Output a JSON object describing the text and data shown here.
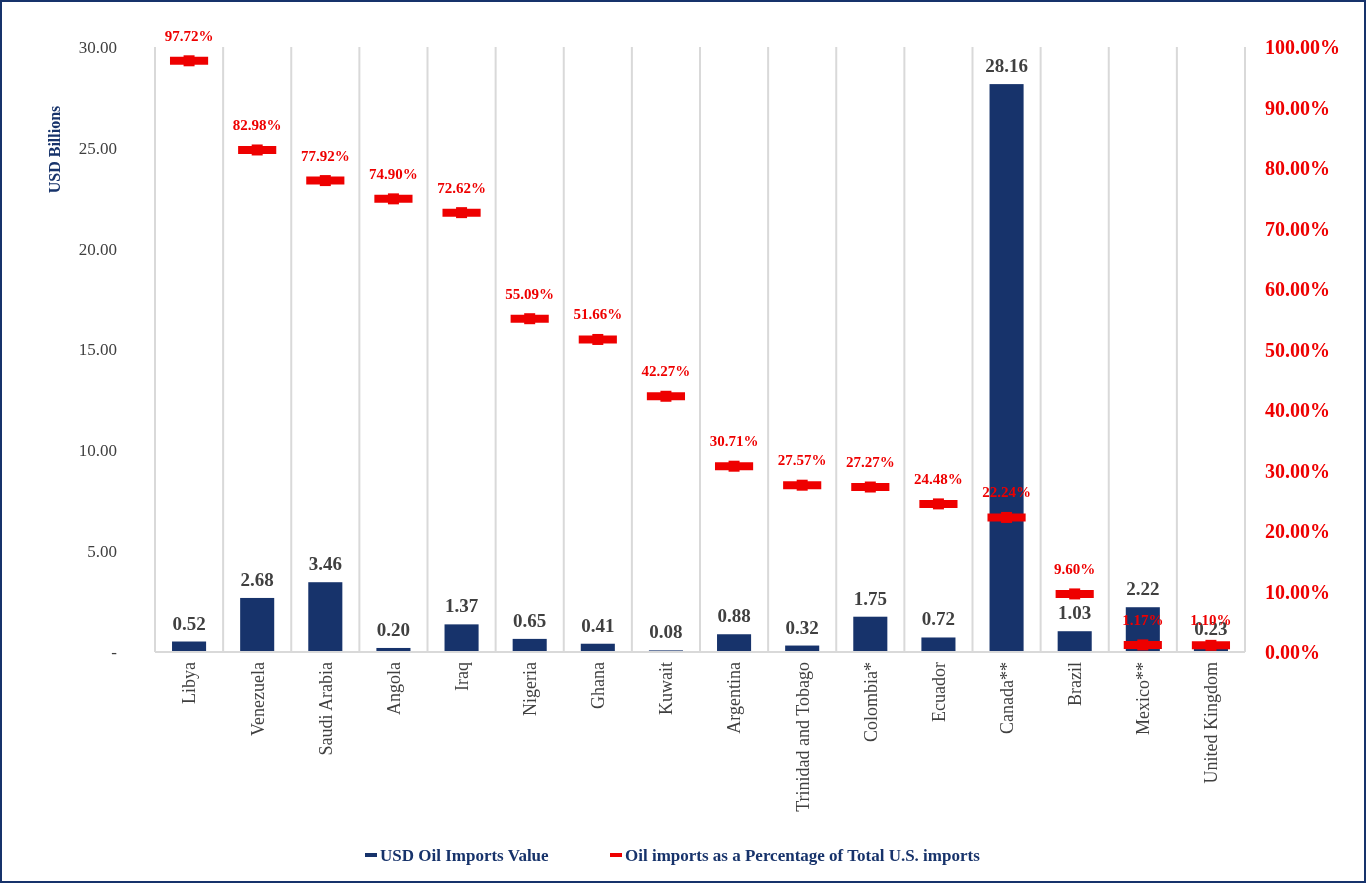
{
  "chart_data": {
    "type": "bar",
    "ylabel": "USD Billions",
    "categories": [
      "Libya",
      "Venezuela",
      "Saudi Arabia",
      "Angola",
      "Iraq",
      "Nigeria",
      "Ghana",
      "Kuwait",
      "Argentina",
      "Trinidad and Tobago",
      "Colombia*",
      "Ecuador",
      "Canada**",
      "Brazil",
      "Mexico**",
      "United Kingdom"
    ],
    "series": [
      {
        "name": "USD Oil Imports Value",
        "color": "#17336b",
        "values": [
          0.52,
          2.68,
          3.46,
          0.2,
          1.37,
          0.65,
          0.41,
          0.08,
          0.88,
          0.32,
          1.75,
          0.72,
          28.16,
          1.03,
          2.22,
          0.23
        ],
        "value_labels": [
          "0.52",
          "2.68",
          "3.46",
          "0.20",
          "1.37",
          "0.65",
          "0.41",
          "0.08",
          "0.88",
          "0.32",
          "1.75",
          "0.72",
          "28.16",
          "1.03",
          "2.22",
          "0.23"
        ]
      },
      {
        "name": "Oil imports as a Percentage of Total U.S. imports",
        "type": "scatter",
        "axis": "y2",
        "color": "#ee0000",
        "values": [
          97.72,
          82.98,
          77.92,
          74.9,
          72.62,
          55.09,
          51.66,
          42.27,
          30.71,
          27.57,
          27.27,
          24.48,
          22.24,
          9.6,
          1.17,
          1.1
        ],
        "value_labels": [
          "97.72%",
          "82.98%",
          "77.92%",
          "74.90%",
          "72.62%",
          "55.09%",
          "51.66%",
          "42.27%",
          "30.71%",
          "27.57%",
          "27.27%",
          "24.48%",
          "22.24%",
          "9.60%",
          "1.17%",
          "1.10%"
        ]
      }
    ],
    "ylim": [
      0,
      30
    ],
    "yticks": [
      {
        "value": 0,
        "label": "-"
      },
      {
        "value": 5,
        "label": "5.00"
      },
      {
        "value": 10,
        "label": "10.00"
      },
      {
        "value": 15,
        "label": "15.00"
      },
      {
        "value": 20,
        "label": "20.00"
      },
      {
        "value": 25,
        "label": "25.00"
      },
      {
        "value": 30,
        "label": "30.00"
      }
    ],
    "y2lim": [
      0,
      100
    ],
    "y2ticks": [
      {
        "value": 0,
        "label": "0.00%"
      },
      {
        "value": 10,
        "label": "10.00%"
      },
      {
        "value": 20,
        "label": "20.00%"
      },
      {
        "value": 30,
        "label": "30.00%"
      },
      {
        "value": 40,
        "label": "40.00%"
      },
      {
        "value": 50,
        "label": "50.00%"
      },
      {
        "value": 60,
        "label": "60.00%"
      },
      {
        "value": 70,
        "label": "70.00%"
      },
      {
        "value": 80,
        "label": "80.00%"
      },
      {
        "value": 90,
        "label": "90.00%"
      },
      {
        "value": 100,
        "label": "100.00%"
      }
    ],
    "grid": "x",
    "legend": "bottom"
  }
}
